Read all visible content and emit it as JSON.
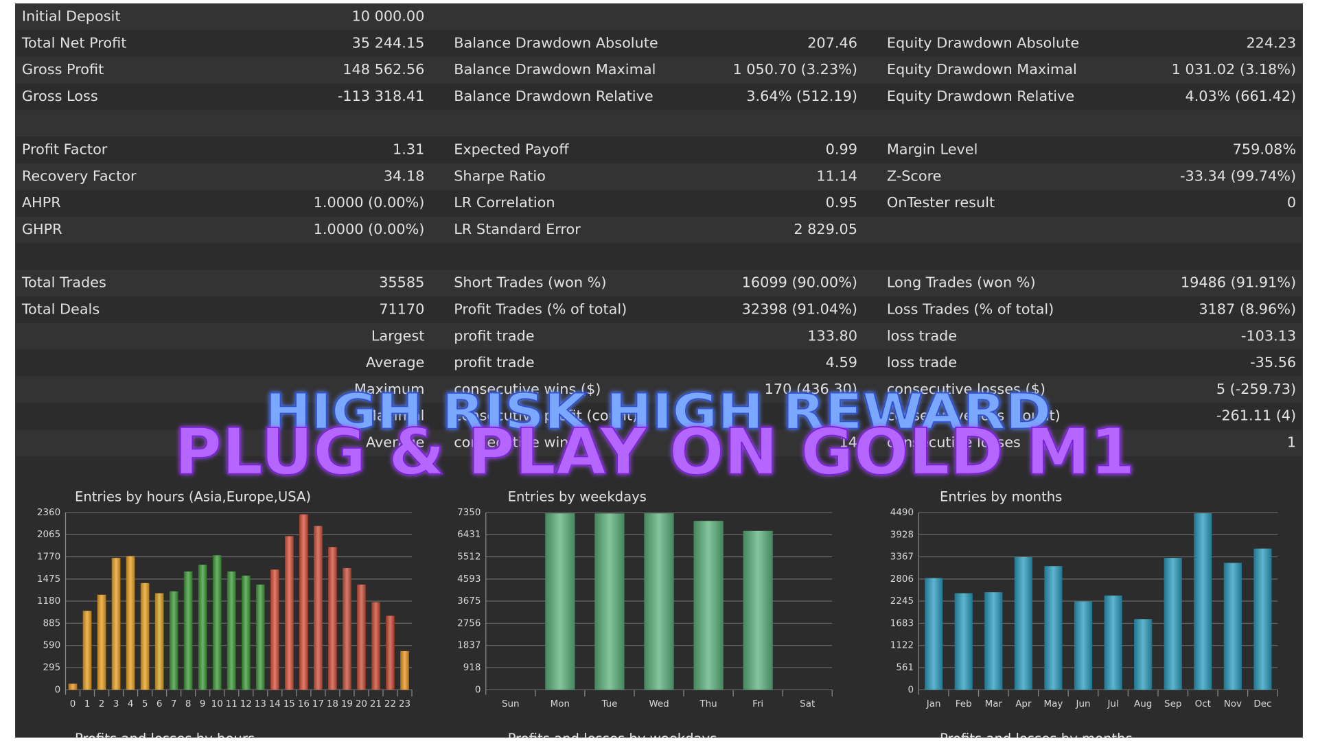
{
  "table": {
    "rows": [
      [
        "Initial Deposit",
        "10 000.00"
      ],
      [
        "Total Net Profit",
        "35 244.15",
        "Balance Drawdown Absolute",
        "207.46",
        "Equity Drawdown Absolute",
        "224.23"
      ],
      [
        "Gross Profit",
        "148 562.56",
        "Balance Drawdown Maximal",
        "1 050.70 (3.23%)",
        "Equity Drawdown Maximal",
        "1 031.02 (3.18%)"
      ],
      [
        "Gross Loss",
        "-113 318.41",
        "Balance Drawdown Relative",
        "3.64% (512.19)",
        "Equity Drawdown Relative",
        "4.03% (661.42)"
      ],
      [],
      [
        "Profit Factor",
        "1.31",
        "Expected Payoff",
        "0.99",
        "Margin Level",
        "759.08%"
      ],
      [
        "Recovery Factor",
        "34.18",
        "Sharpe Ratio",
        "11.14",
        "Z-Score",
        "-33.34 (99.74%)"
      ],
      [
        "AHPR",
        "1.0000 (0.00%)",
        "LR Correlation",
        "0.95",
        "OnTester result",
        "0"
      ],
      [
        "GHPR",
        "1.0000 (0.00%)",
        "LR Standard Error",
        "2 829.05"
      ],
      [],
      [
        "Total Trades",
        "35585",
        "Short Trades (won %)",
        "16099 (90.00%)",
        "Long Trades (won %)",
        "19486 (91.91%)"
      ],
      [
        "Total Deals",
        "71170",
        "Profit Trades (% of total)",
        "32398 (91.04%)",
        "Loss Trades (% of total)",
        "3187 (8.96%)"
      ],
      [
        null,
        "Largest",
        "profit trade",
        "133.80",
        "loss trade",
        "-103.13"
      ],
      [
        null,
        "Average",
        "profit trade",
        "4.59",
        "loss trade",
        "-35.56"
      ],
      [
        null,
        "Maximum",
        "consecutive wins ($)",
        "170 (436.30)",
        "consecutive losses ($)",
        "5 (-259.73)"
      ],
      [
        null,
        "Maximal",
        "consecutive profit (count)",
        null,
        "consecutive loss (count)",
        "-261.11 (4)"
      ],
      [
        null,
        "Average",
        "consecutive wins",
        "14",
        "consecutive losses",
        "1"
      ]
    ]
  },
  "banner": {
    "line1": "HIGH RISK HIGH REWARD",
    "line2": "PLUG & PLAY ON GOLD M1"
  },
  "chart_data": [
    {
      "type": "bar",
      "title": "Entries by hours (Asia,Europe,USA)",
      "categories": [
        "0",
        "1",
        "2",
        "3",
        "4",
        "5",
        "6",
        "7",
        "8",
        "9",
        "10",
        "11",
        "12",
        "13",
        "14",
        "15",
        "16",
        "17",
        "18",
        "19",
        "20",
        "21",
        "22",
        "23"
      ],
      "values": [
        80,
        1050,
        1265,
        1755,
        1780,
        1420,
        1285,
        1310,
        1575,
        1665,
        1790,
        1575,
        1520,
        1400,
        1600,
        2045,
        2335,
        2180,
        1900,
        1620,
        1400,
        1165,
        985,
        515
      ],
      "colors": [
        "#e8941e",
        "#e8a020",
        "#e8a020",
        "#e8a020",
        "#e8a020",
        "#e8a020",
        "#d8a020",
        "#3c9a38",
        "#3c9a38",
        "#3c9a38",
        "#3c9a38",
        "#3c9a38",
        "#3c9a38",
        "#3c9a38",
        "#d8503a",
        "#d8503a",
        "#d8503a",
        "#d0503a",
        "#d0503a",
        "#c8503a",
        "#c8503a",
        "#c84a30",
        "#c84a30",
        "#e8941e"
      ],
      "ylim": [
        0,
        2360
      ],
      "yticks": [
        0,
        295,
        590,
        885,
        1180,
        1475,
        1770,
        2065,
        2360
      ],
      "grid": true
    },
    {
      "type": "bar",
      "title": "Entries by weekdays",
      "categories": [
        "Sun",
        "Mon",
        "Tue",
        "Wed",
        "Thu",
        "Fri",
        "Sat"
      ],
      "values": [
        0,
        7315,
        7310,
        7315,
        7000,
        6585,
        0
      ],
      "color": "#5cb27e",
      "ylim": [
        0,
        7350
      ],
      "yticks": [
        0,
        918,
        1837,
        2756,
        3675,
        4593,
        5512,
        6431,
        7350
      ],
      "grid": true
    },
    {
      "type": "bar",
      "title": "Entries by months",
      "categories": [
        "Jan",
        "Feb",
        "Mar",
        "Apr",
        "May",
        "Jun",
        "Jul",
        "Aug",
        "Sep",
        "Oct",
        "Nov",
        "Dec"
      ],
      "values": [
        2830,
        2445,
        2470,
        3360,
        3130,
        2235,
        2385,
        1790,
        3340,
        4470,
        3215,
        3575
      ],
      "color": "#2a9cbe",
      "ylim": [
        0,
        4490
      ],
      "yticks": [
        0,
        561,
        1122,
        1683,
        2245,
        2806,
        3367,
        3928,
        4490
      ],
      "grid": true
    }
  ],
  "footer_titles": [
    "Profits and losses by hours",
    "Profits and losses by weekdays",
    "Profits and losses by months"
  ]
}
